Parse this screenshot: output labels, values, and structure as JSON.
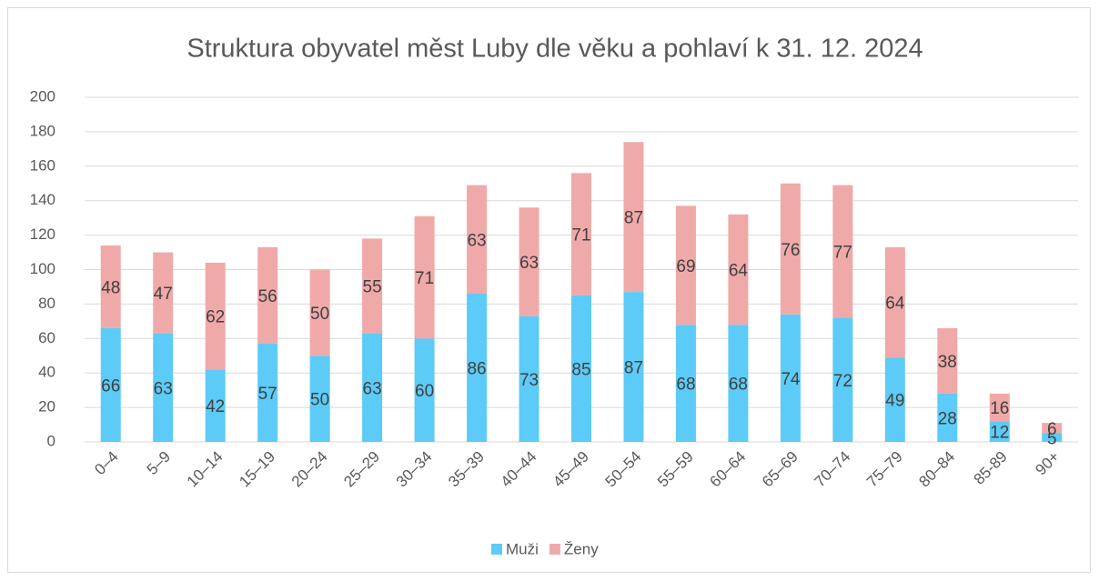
{
  "chart_data": {
    "type": "stacked_bar",
    "title": "Struktura obyvatel měst Luby dle věku a pohlaví k 31. 12. 2024",
    "categories": [
      "0–4",
      "5–9",
      "10–14",
      "15–19",
      "20–24",
      "25–29",
      "30–34",
      "35–39",
      "40–44",
      "45–49",
      "50–54",
      "55–59",
      "60–64",
      "65–69",
      "70–74",
      "75–79",
      "80–84",
      "85-89",
      "90+"
    ],
    "series": [
      {
        "name": "Muži",
        "color": "#5ccbf7",
        "values": [
          66,
          63,
          42,
          57,
          50,
          63,
          60,
          86,
          73,
          85,
          87,
          68,
          68,
          74,
          72,
          49,
          28,
          12,
          5
        ]
      },
      {
        "name": "Ženy",
        "color": "#f0a9a9",
        "values": [
          48,
          47,
          62,
          56,
          50,
          55,
          71,
          63,
          63,
          71,
          87,
          69,
          64,
          76,
          77,
          64,
          38,
          16,
          6
        ]
      }
    ],
    "ylim": [
      0,
      200
    ],
    "yticks": [
      0,
      20,
      40,
      60,
      80,
      100,
      120,
      140,
      160,
      180,
      200
    ],
    "grid": true,
    "legend": "bottom"
  }
}
